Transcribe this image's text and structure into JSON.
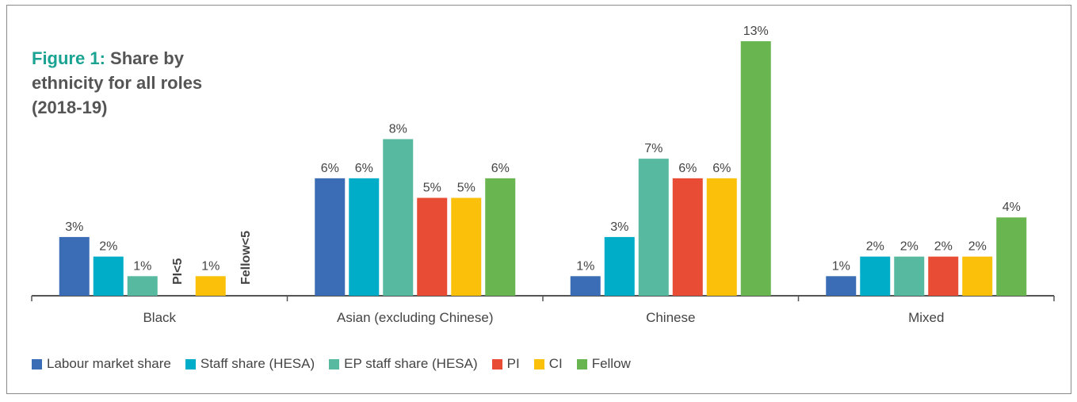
{
  "title": {
    "prefix": "Figure 1:",
    "text": "Share by ethnicity for all roles (2018-19)"
  },
  "chart_data": {
    "type": "bar",
    "title": "Figure 1: Share by ethnicity for all roles (2018-19)",
    "xlabel": "",
    "ylabel": "",
    "ylim": [
      0,
      13
    ],
    "grid": false,
    "legend_position": "bottom",
    "categories": [
      "Black",
      "Asian (excluding Chinese)",
      "Chinese",
      "Mixed"
    ],
    "series": [
      {
        "name": "Labour market share",
        "color": "#3a6db5",
        "values": [
          3,
          6,
          1,
          1
        ],
        "labels": [
          "3%",
          "6%",
          "1%",
          "1%"
        ]
      },
      {
        "name": "Staff share (HESA)",
        "color": "#00adc8",
        "values": [
          2,
          6,
          3,
          2
        ],
        "labels": [
          "2%",
          "6%",
          "3%",
          "2%"
        ]
      },
      {
        "name": "EP staff share (HESA)",
        "color": "#56b9a0",
        "values": [
          1,
          8,
          7,
          2
        ],
        "labels": [
          "1%",
          "8%",
          "7%",
          "2%"
        ]
      },
      {
        "name": "PI",
        "color": "#e84c34",
        "values": [
          null,
          5,
          6,
          2
        ],
        "labels": [
          "PI<5",
          "5%",
          "6%",
          "2%"
        ]
      },
      {
        "name": "CI",
        "color": "#fac00a",
        "values": [
          1,
          5,
          6,
          2
        ],
        "labels": [
          "1%",
          "5%",
          "6%",
          "2%"
        ]
      },
      {
        "name": "Fellow",
        "color": "#69b54f",
        "values": [
          null,
          6,
          13,
          4
        ],
        "labels": [
          "Fellow<5",
          "6%",
          "13%",
          "4%"
        ]
      }
    ]
  }
}
